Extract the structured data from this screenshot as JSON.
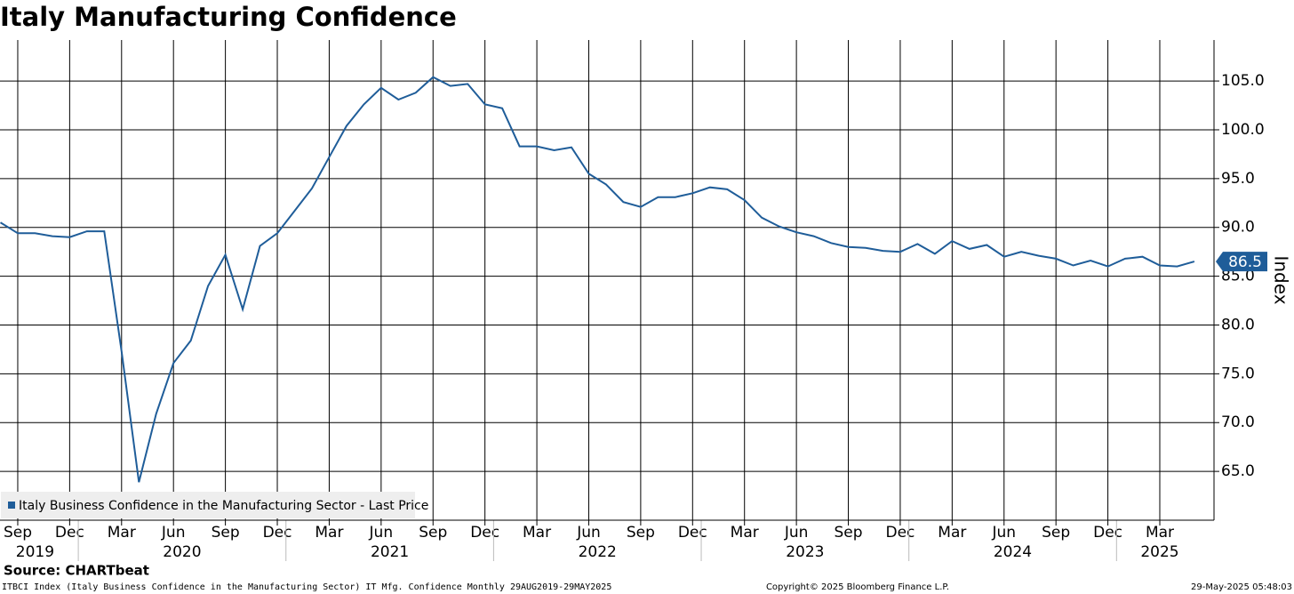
{
  "chart_data": {
    "type": "line",
    "title": "Italy Manufacturing Confidence",
    "y_label": "Index",
    "x": [
      "2019-08",
      "2019-09",
      "2019-10",
      "2019-11",
      "2019-12",
      "2020-01",
      "2020-02",
      "2020-03",
      "2020-04",
      "2020-05",
      "2020-06",
      "2020-07",
      "2020-08",
      "2020-09",
      "2020-10",
      "2020-11",
      "2020-12",
      "2021-01",
      "2021-02",
      "2021-03",
      "2021-04",
      "2021-05",
      "2021-06",
      "2021-07",
      "2021-08",
      "2021-09",
      "2021-10",
      "2021-11",
      "2021-12",
      "2022-01",
      "2022-02",
      "2022-03",
      "2022-04",
      "2022-05",
      "2022-06",
      "2022-07",
      "2022-08",
      "2022-09",
      "2022-10",
      "2022-11",
      "2022-12",
      "2023-01",
      "2023-02",
      "2023-03",
      "2023-04",
      "2023-05",
      "2023-06",
      "2023-07",
      "2023-08",
      "2023-09",
      "2023-10",
      "2023-11",
      "2023-12",
      "2024-01",
      "2024-02",
      "2024-03",
      "2024-04",
      "2024-05",
      "2024-06",
      "2024-07",
      "2024-08",
      "2024-09",
      "2024-10",
      "2024-11",
      "2024-12",
      "2025-01",
      "2025-02",
      "2025-03",
      "2025-04",
      "2025-05"
    ],
    "series": [
      {
        "name": "Italy Business Confidence in the Manufacturing Sector - Last Price",
        "color": "#1f5d99",
        "values": [
          90.5,
          89.4,
          89.4,
          89.1,
          89.0,
          89.6,
          89.6,
          77.3,
          63.9,
          70.9,
          76.1,
          78.4,
          84.0,
          87.2,
          81.6,
          88.1,
          89.4,
          91.7,
          94.0,
          97.2,
          100.4,
          102.6,
          104.3,
          103.1,
          103.8,
          105.4,
          104.5,
          104.7,
          102.6,
          102.2,
          98.3,
          98.3,
          97.9,
          98.2,
          95.5,
          94.4,
          92.6,
          92.1,
          93.1,
          93.1,
          93.5,
          94.1,
          93.9,
          92.8,
          91.0,
          90.1,
          89.5,
          89.1,
          88.4,
          88.0,
          87.9,
          87.6,
          87.5,
          88.3,
          87.3,
          88.6,
          87.8,
          88.2,
          87.0,
          87.5,
          87.1,
          86.8,
          86.1,
          86.6,
          86.0,
          86.8,
          87.0,
          86.1,
          86.0,
          86.5
        ]
      }
    ],
    "xticks": [
      {
        "value": "2019-09",
        "label": "Sep"
      },
      {
        "value": "2019-12",
        "label": "Dec"
      },
      {
        "value": "2020-03",
        "label": "Mar"
      },
      {
        "value": "2020-06",
        "label": "Jun"
      },
      {
        "value": "2020-09",
        "label": "Sep"
      },
      {
        "value": "2020-12",
        "label": "Dec"
      },
      {
        "value": "2021-03",
        "label": "Mar"
      },
      {
        "value": "2021-06",
        "label": "Jun"
      },
      {
        "value": "2021-09",
        "label": "Sep"
      },
      {
        "value": "2021-12",
        "label": "Dec"
      },
      {
        "value": "2022-03",
        "label": "Mar"
      },
      {
        "value": "2022-06",
        "label": "Jun"
      },
      {
        "value": "2022-09",
        "label": "Sep"
      },
      {
        "value": "2022-12",
        "label": "Dec"
      },
      {
        "value": "2023-03",
        "label": "Mar"
      },
      {
        "value": "2023-06",
        "label": "Jun"
      },
      {
        "value": "2023-09",
        "label": "Sep"
      },
      {
        "value": "2023-12",
        "label": "Dec"
      },
      {
        "value": "2024-03",
        "label": "Mar"
      },
      {
        "value": "2024-06",
        "label": "Jun"
      },
      {
        "value": "2024-09",
        "label": "Sep"
      },
      {
        "value": "2024-12",
        "label": "Dec"
      },
      {
        "value": "2025-03",
        "label": "Mar"
      }
    ],
    "years": [
      "2019",
      "2020",
      "2021",
      "2022",
      "2023",
      "2024",
      "2025"
    ],
    "ylim": [
      60,
      109.2
    ],
    "yticks": [
      {
        "value": 65,
        "label": "65.0"
      },
      {
        "value": 70,
        "label": "70.0"
      },
      {
        "value": 75,
        "label": "75.0"
      },
      {
        "value": 80,
        "label": "80.0"
      },
      {
        "value": 85,
        "label": "85.0"
      },
      {
        "value": 90,
        "label": "90.0"
      },
      {
        "value": 95,
        "label": "95.0"
      },
      {
        "value": 100,
        "label": "100.0"
      },
      {
        "value": 105,
        "label": "105.0"
      }
    ],
    "grid": true,
    "legend_position": "lower left",
    "source": "Source: CHARTbeat",
    "footer_left": "ITBCI Index (Italy Business Confidence in the Manufacturing Sector) IT Mfg. Confidence  Monthly 29AUG2019-29MAY2025",
    "footer_center": "Copyright© 2025 Bloomberg Finance L.P.",
    "footer_right": "29-May-2025 05:48:03"
  }
}
